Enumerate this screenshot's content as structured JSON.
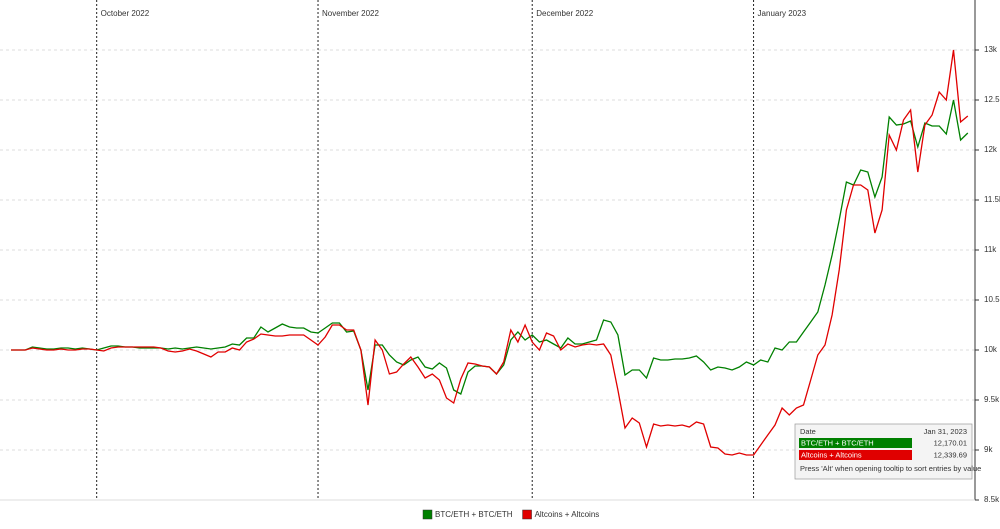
{
  "chart_data": {
    "type": "line",
    "categories": [
      null,
      null,
      null,
      null,
      null,
      null,
      null,
      null,
      null,
      null,
      null,
      null,
      "October 2022",
      null,
      null,
      null,
      null,
      null,
      null,
      null,
      null,
      null,
      null,
      null,
      null,
      null,
      null,
      null,
      null,
      null,
      null,
      null,
      null,
      null,
      null,
      null,
      null,
      null,
      null,
      null,
      null,
      null,
      null,
      "November 2022",
      null,
      null,
      null,
      null,
      null,
      null,
      null,
      null,
      null,
      null,
      null,
      null,
      null,
      null,
      null,
      null,
      null,
      null,
      null,
      null,
      null,
      null,
      null,
      null,
      null,
      null,
      null,
      null,
      null,
      "December 2022",
      null,
      null,
      null,
      null,
      null,
      null,
      null,
      null,
      null,
      null,
      null,
      null,
      null,
      null,
      null,
      null,
      null,
      null,
      null,
      null,
      null,
      null,
      null,
      null,
      null,
      null,
      null,
      null,
      null,
      null,
      "January 2023",
      null,
      null,
      null,
      null,
      null,
      null,
      null,
      null,
      null,
      null,
      null,
      null,
      null,
      null,
      null,
      null,
      null,
      null,
      null,
      null,
      null,
      null,
      null,
      null,
      null,
      null,
      null,
      null,
      null,
      null
    ],
    "series": [
      {
        "name": "BTC/ETH + BTC/ETH",
        "color": "#008000",
        "values": [
          10000,
          10000,
          10000,
          10030,
          10020,
          10010,
          10010,
          10020,
          10020,
          10010,
          10020,
          10010,
          10000,
          10020,
          10040,
          10040,
          10030,
          10030,
          10020,
          10020,
          10020,
          10020,
          10010,
          10020,
          10010,
          10020,
          10030,
          10020,
          10010,
          10020,
          10030,
          10060,
          10050,
          10120,
          10120,
          10230,
          10180,
          10220,
          10260,
          10230,
          10220,
          10220,
          10180,
          10170,
          10220,
          10270,
          10270,
          10180,
          10190,
          10000,
          9600,
          10050,
          10050,
          9950,
          9880,
          9850,
          9900,
          9930,
          9830,
          9810,
          9870,
          9820,
          9600,
          9560,
          9780,
          9840,
          9840,
          9830,
          9760,
          9850,
          10100,
          10180,
          10100,
          10150,
          10080,
          10100,
          10060,
          10020,
          10120,
          10060,
          10060,
          10080,
          10100,
          10300,
          10280,
          10150,
          9750,
          9800,
          9800,
          9720,
          9920,
          9900,
          9900,
          9910,
          9910,
          9920,
          9940,
          9880,
          9800,
          9830,
          9820,
          9800,
          9830,
          9880,
          9850,
          9900,
          9880,
          10020,
          10000,
          10080,
          10080,
          10180,
          10280,
          10380,
          10650,
          10950,
          11300,
          11680,
          11650,
          11800,
          11780,
          11530,
          11730,
          12330,
          12250,
          12260,
          12290,
          12030,
          12270,
          12240,
          12240,
          12160,
          12500,
          12100,
          12170.01
        ]
      },
      {
        "name": "Altcoins + Altcoins",
        "color": "#e00000",
        "values": [
          10000,
          10000,
          10000,
          10020,
          10010,
          10000,
          10000,
          10010,
          10000,
          10000,
          10010,
          10010,
          10000,
          9990,
          10020,
          10030,
          10030,
          10030,
          10030,
          10030,
          10030,
          10020,
          9990,
          9980,
          9990,
          10010,
          9990,
          9960,
          9930,
          9980,
          9980,
          10020,
          10000,
          10080,
          10110,
          10160,
          10150,
          10140,
          10140,
          10150,
          10150,
          10150,
          10100,
          10050,
          10130,
          10250,
          10250,
          10200,
          10200,
          10000,
          9450,
          10100,
          10000,
          9760,
          9780,
          9860,
          9930,
          9830,
          9720,
          9760,
          9700,
          9520,
          9470,
          9710,
          9870,
          9860,
          9840,
          9830,
          9760,
          9880,
          10200,
          10080,
          10250,
          10080,
          10000,
          10170,
          10140,
          10000,
          10060,
          10030,
          10050,
          10060,
          10050,
          10060,
          9950,
          9600,
          9220,
          9320,
          9270,
          9030,
          9260,
          9240,
          9250,
          9240,
          9250,
          9230,
          9280,
          9260,
          9030,
          9020,
          8960,
          8950,
          8970,
          8950,
          8950,
          9050,
          9150,
          9250,
          9420,
          9350,
          9420,
          9450,
          9700,
          9950,
          10050,
          10350,
          10800,
          11400,
          11650,
          11650,
          11600,
          11170,
          11400,
          12150,
          12000,
          12300,
          12400,
          11780,
          12250,
          12350,
          12580,
          12500,
          13000,
          12280,
          12339.69
        ]
      }
    ],
    "ylim": [
      8500,
      13450
    ],
    "yticks": [
      {
        "value": 8500,
        "label": "8.5k"
      },
      {
        "value": 9000,
        "label": "9k"
      },
      {
        "value": 9500,
        "label": "9.5k"
      },
      {
        "value": 10000,
        "label": "10k"
      },
      {
        "value": 10500,
        "label": "10.5k"
      },
      {
        "value": 11000,
        "label": "11k"
      },
      {
        "value": 11500,
        "label": "11.5k"
      },
      {
        "value": 12000,
        "label": "12k"
      },
      {
        "value": 12500,
        "label": "12.5k"
      },
      {
        "value": 13000,
        "label": "13k"
      }
    ],
    "grid": true,
    "legend": "bottom",
    "tooltip": {
      "header": "Date",
      "category": "Jan 31, 2023",
      "entries": [
        {
          "name": "BTC/ETH + BTC/ETH",
          "color": "#008000",
          "value": 12170.01,
          "value_label": "12,170.01"
        },
        {
          "name": "Altcoins + Altcoins",
          "color": "#e00000",
          "value": 12339.69,
          "value_label": "12,339.69"
        }
      ],
      "note": "Press 'Alt' when opening tooltip to sort entries by value"
    }
  }
}
